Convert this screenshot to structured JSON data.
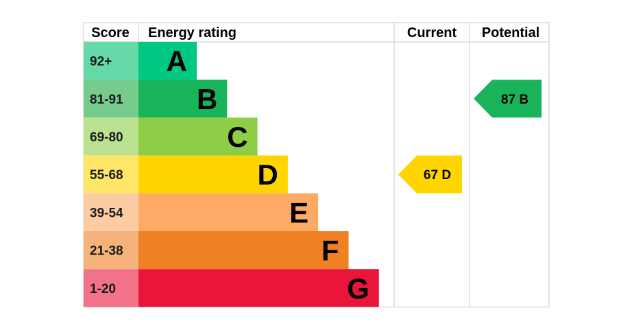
{
  "chart_data": {
    "type": "bar",
    "headers": {
      "score": "Score",
      "rating": "Energy rating",
      "current": "Current",
      "potential": "Potential"
    },
    "bands": [
      {
        "letter": "A",
        "range": "92+",
        "color": "#00c781",
        "score_bg": "#66d9a8"
      },
      {
        "letter": "B",
        "range": "81-91",
        "color": "#19b459",
        "score_bg": "#75cc8d"
      },
      {
        "letter": "C",
        "range": "69-80",
        "color": "#8dce46",
        "score_bg": "#bbe291"
      },
      {
        "letter": "D",
        "range": "55-68",
        "color": "#ffd500",
        "score_bg": "#ffe666"
      },
      {
        "letter": "E",
        "range": "39-54",
        "color": "#fcaa65",
        "score_bg": "#fdcca3"
      },
      {
        "letter": "F",
        "range": "21-38",
        "color": "#ef8023",
        "score_bg": "#f5b37b"
      },
      {
        "letter": "G",
        "range": "1-20",
        "color": "#e9153b",
        "score_bg": "#f27389"
      }
    ],
    "current": {
      "value": 67,
      "band": "D",
      "label": "67 D",
      "color": "#ffd500"
    },
    "potential": {
      "value": 87,
      "band": "B",
      "label": "87 B",
      "color": "#19b459"
    }
  }
}
